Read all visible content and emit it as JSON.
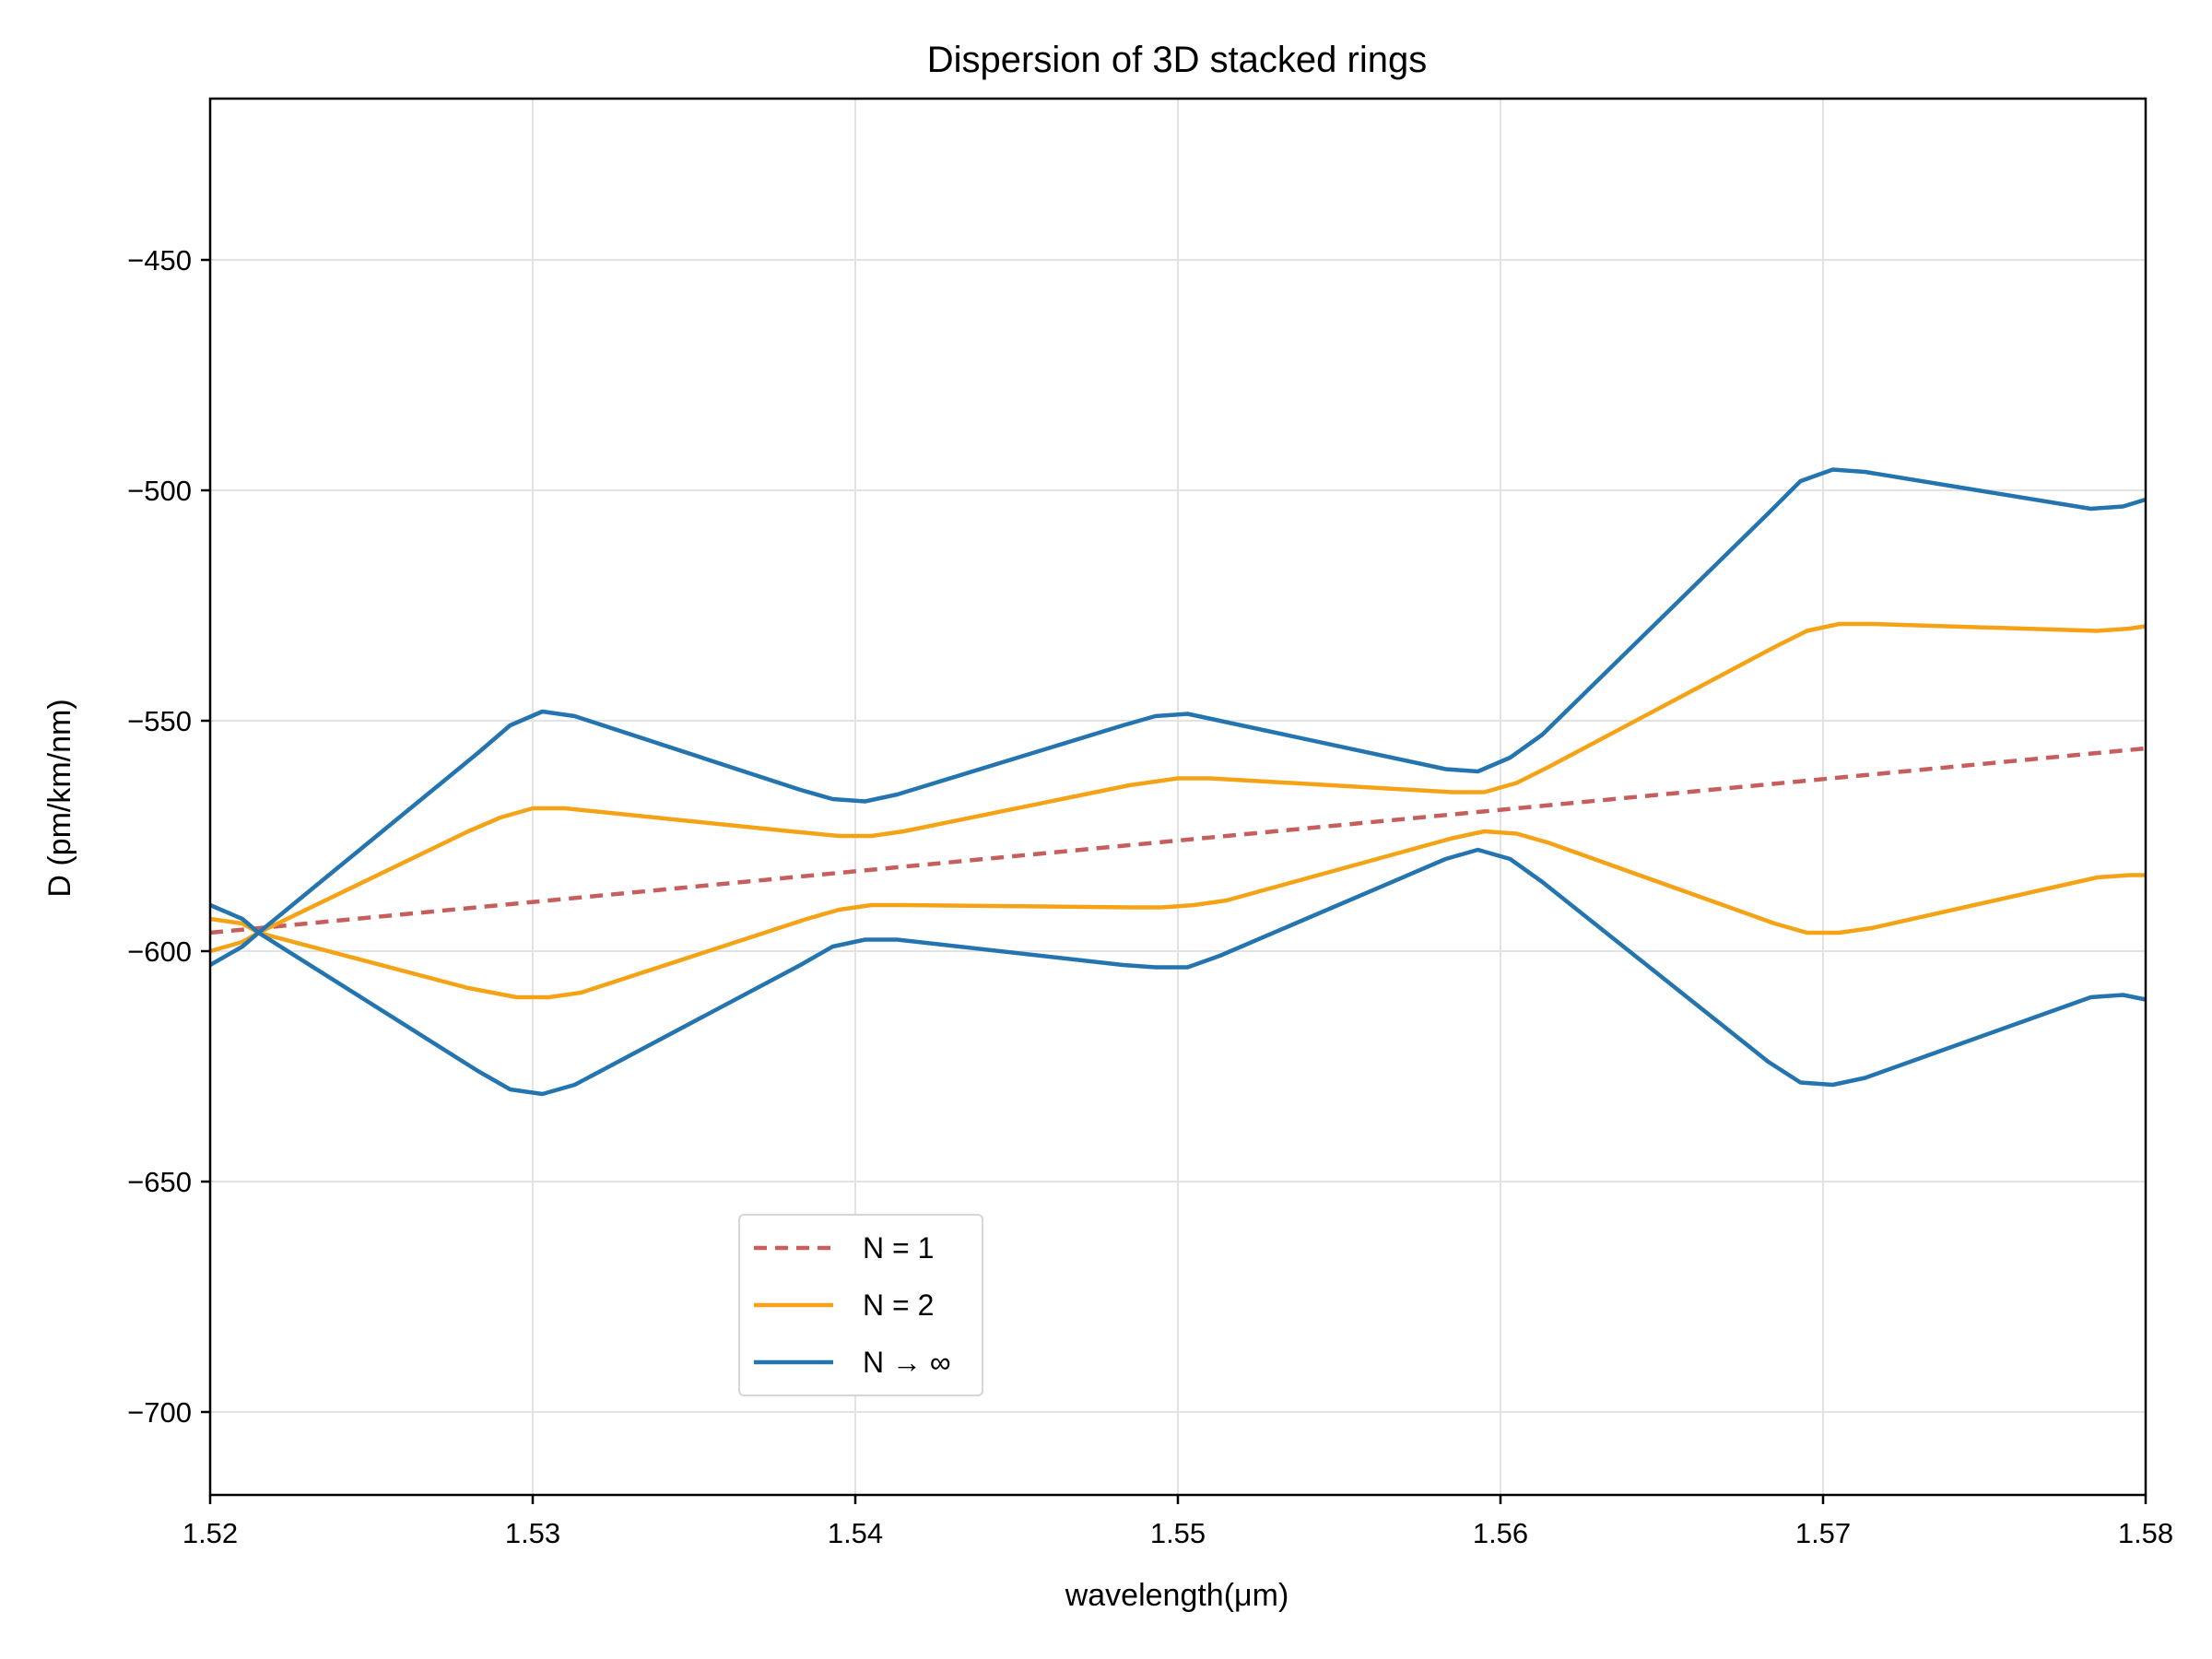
{
  "chart_data": {
    "type": "line",
    "title": "Dispersion of 3D stacked rings",
    "xlabel": "wavelength(μm)",
    "ylabel": "D (pm/km/nm)",
    "xlim": [
      1.52,
      1.58
    ],
    "ylim": [
      -718,
      -415
    ],
    "xticks": [
      1.52,
      1.53,
      1.54,
      1.55,
      1.56,
      1.57,
      1.58
    ],
    "xtick_labels": [
      "1.52",
      "1.53",
      "1.54",
      "1.55",
      "1.56",
      "1.57",
      "1.58"
    ],
    "yticks": [
      -450,
      -500,
      -550,
      -600,
      -650,
      -700
    ],
    "ytick_labels": [
      "−450",
      "−500",
      "−550",
      "−600",
      "−650",
      "−700"
    ],
    "grid": true,
    "legend": {
      "placement": "lower-center-left",
      "entries": [
        {
          "label": "N = 1",
          "color": "#c65e5e",
          "style": "dashed"
        },
        {
          "label": "N = 2",
          "color": "#f5a316",
          "style": "solid"
        },
        {
          "label": "N → ∞",
          "color": "#2474b0",
          "style": "solid"
        }
      ]
    },
    "series": [
      {
        "name": "N = 1",
        "color": "#c65e5e",
        "style": "dashed",
        "x": [
          1.52,
          1.58
        ],
        "y": [
          -596,
          -556
        ]
      },
      {
        "name": "N = 2",
        "color": "#f5a316",
        "style": "solid",
        "x": [
          1.52,
          1.521,
          1.5215,
          1.528,
          1.529,
          1.53,
          1.531,
          1.538,
          1.5395,
          1.5405,
          1.5415,
          1.5485,
          1.55,
          1.551,
          1.5585,
          1.5595,
          1.5605,
          1.5615,
          1.5685,
          1.5695,
          1.5705,
          1.5715,
          1.5785,
          1.5795,
          1.58
        ],
        "y": [
          -600,
          -598,
          -596,
          -574,
          -571,
          -569,
          -569,
          -574,
          -575,
          -575,
          -574,
          -564,
          -562.5,
          -562.5,
          -565.5,
          -565.5,
          -563.5,
          -560,
          -534,
          -530.5,
          -529,
          -529,
          -530.5,
          -530,
          -529.5
        ]
      },
      {
        "name": "N = 2",
        "color": "#f5a316",
        "style": "solid",
        "x": [
          1.52,
          1.521,
          1.5215,
          1.528,
          1.5295,
          1.5305,
          1.5315,
          1.5385,
          1.5395,
          1.5405,
          1.5415,
          1.5485,
          1.5495,
          1.5505,
          1.5515,
          1.5585,
          1.5595,
          1.5605,
          1.5615,
          1.5685,
          1.5695,
          1.5705,
          1.5715,
          1.5785,
          1.5795,
          1.58
        ],
        "y": [
          -593,
          -594,
          -596,
          -608,
          -610,
          -610,
          -609,
          -593,
          -591,
          -590,
          -590,
          -590.5,
          -590.5,
          -590,
          -589,
          -575.5,
          -574,
          -574.5,
          -576.5,
          -594,
          -596,
          -596,
          -595,
          -584,
          -583.5,
          -583.5
        ]
      },
      {
        "name": "N → ∞",
        "color": "#2474b0",
        "style": "solid",
        "x": [
          1.52,
          1.521,
          1.5215,
          1.5283,
          1.5293,
          1.5303,
          1.5313,
          1.5383,
          1.5393,
          1.5403,
          1.5413,
          1.5483,
          1.5493,
          1.5503,
          1.5513,
          1.5583,
          1.5593,
          1.5603,
          1.5613,
          1.5683,
          1.5693,
          1.5703,
          1.5713,
          1.5783,
          1.5793,
          1.58
        ],
        "y": [
          -603,
          -599,
          -596,
          -557,
          -551,
          -548,
          -549,
          -565,
          -567,
          -567.5,
          -566,
          -551,
          -549,
          -548.5,
          -550,
          -560.5,
          -561,
          -558,
          -553,
          -505,
          -498,
          -495.5,
          -496,
          -504,
          -503.5,
          -502
        ]
      },
      {
        "name": "N → ∞",
        "color": "#2474b0",
        "style": "solid",
        "x": [
          1.52,
          1.521,
          1.5215,
          1.5283,
          1.5293,
          1.5303,
          1.5313,
          1.5383,
          1.5393,
          1.5403,
          1.5413,
          1.5483,
          1.5493,
          1.5503,
          1.5513,
          1.5583,
          1.5593,
          1.5603,
          1.5613,
          1.5683,
          1.5693,
          1.5703,
          1.5713,
          1.5783,
          1.5793,
          1.58
        ],
        "y": [
          -590,
          -593,
          -596,
          -626,
          -630,
          -631,
          -629,
          -603,
          -599,
          -597.5,
          -597.5,
          -603,
          -603.5,
          -603.5,
          -601,
          -580,
          -578,
          -580,
          -585,
          -624,
          -628.5,
          -629,
          -627.5,
          -610,
          -609.5,
          -610.5
        ]
      }
    ]
  }
}
